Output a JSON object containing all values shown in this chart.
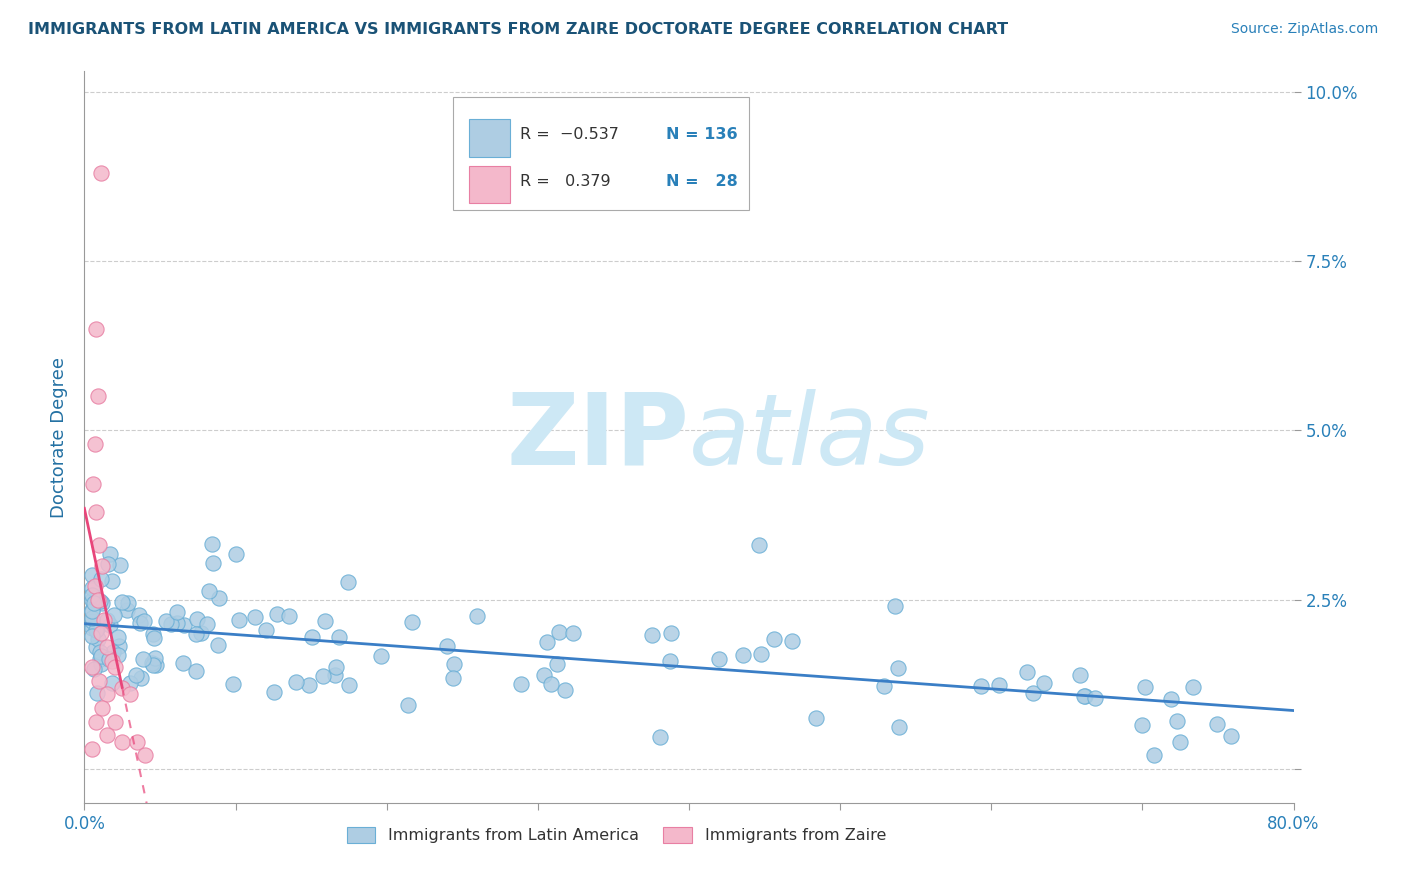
{
  "title": "IMMIGRANTS FROM LATIN AMERICA VS IMMIGRANTS FROM ZAIRE DOCTORATE DEGREE CORRELATION CHART",
  "source": "Source: ZipAtlas.com",
  "ylabel": "Doctorate Degree",
  "xlim": [
    0.0,
    0.8
  ],
  "ylim": [
    -0.005,
    0.103
  ],
  "x_ticks": [
    0.0,
    0.1,
    0.2,
    0.3,
    0.4,
    0.5,
    0.6,
    0.7,
    0.8
  ],
  "x_tick_labels": [
    "0.0%",
    "",
    "",
    "",
    "",
    "",
    "",
    "",
    "80.0%"
  ],
  "y_ticks": [
    0.0,
    0.025,
    0.05,
    0.075,
    0.1
  ],
  "y_tick_labels": [
    "",
    "2.5%",
    "5.0%",
    "7.5%",
    "10.0%"
  ],
  "color_blue": "#aecde3",
  "color_blue_edge": "#6aafd6",
  "color_pink": "#f4b8cb",
  "color_pink_edge": "#e87fa3",
  "color_blue_line": "#3a7ec6",
  "color_pink_line": "#e8457a",
  "color_pink_dash": "#f4b8cb",
  "title_color": "#1a5276",
  "axis_label_color": "#2471a3",
  "tick_color": "#2980b9",
  "background_color": "#ffffff",
  "grid_color": "#c8c8c8",
  "watermark_color": "#cde8f5"
}
